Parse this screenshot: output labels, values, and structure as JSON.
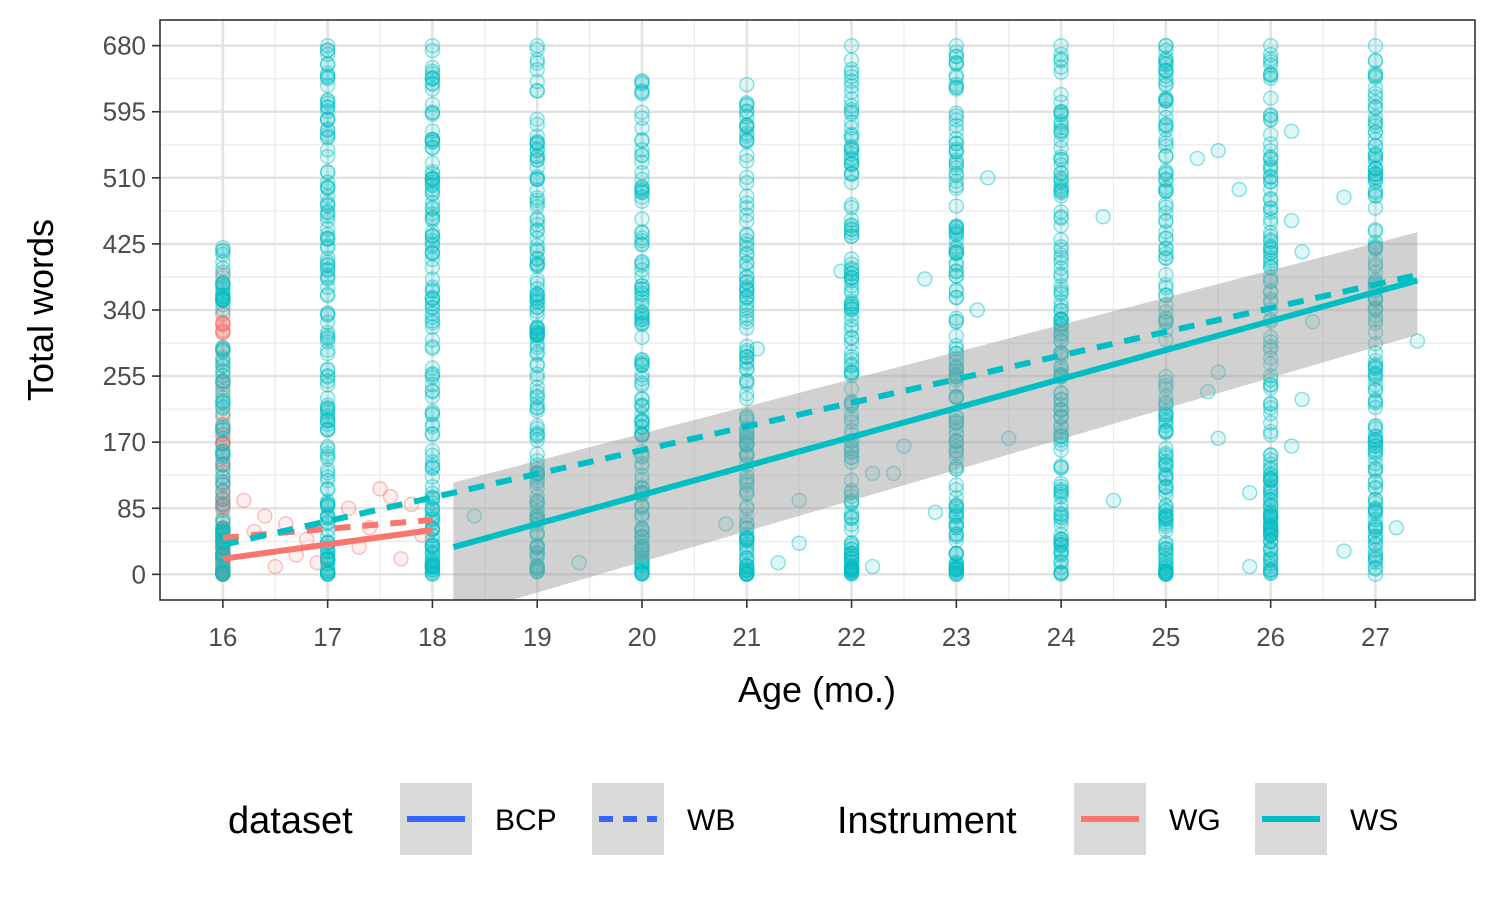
{
  "chart_data": {
    "type": "scatter",
    "xlabel": "Age (mo.)",
    "ylabel": "Total words",
    "xlim": [
      15.4,
      27.95
    ],
    "ylim": [
      -33,
      713
    ],
    "x_ticks": [
      16,
      17,
      18,
      19,
      20,
      21,
      22,
      23,
      24,
      25,
      26,
      27
    ],
    "y_ticks": [
      0,
      85,
      170,
      255,
      340,
      425,
      510,
      595,
      680
    ],
    "grid": true,
    "legend_position": "bottom",
    "legends": [
      {
        "title": "dataset",
        "entries": [
          {
            "label": "BCP",
            "linetype": "solid",
            "color": "#3366FF"
          },
          {
            "label": "WB",
            "linetype": "dashed",
            "color": "#3366FF"
          }
        ]
      },
      {
        "title": "Instrument",
        "entries": [
          {
            "label": "WG",
            "linetype": "solid",
            "color": "#F8766D"
          },
          {
            "label": "WS",
            "linetype": "solid",
            "color": "#00BFC4"
          }
        ]
      }
    ],
    "colors": {
      "WG": "#F8766D",
      "WS": "#00BFC4",
      "ribbon": "#999999"
    },
    "trend_lines": [
      {
        "instrument": "WG",
        "dataset": "BCP",
        "x": [
          16,
          18
        ],
        "y": [
          20,
          57
        ]
      },
      {
        "instrument": "WG",
        "dataset": "WB",
        "x": [
          16,
          18
        ],
        "y": [
          47,
          70
        ]
      },
      {
        "instrument": "WS",
        "dataset": "BCP",
        "x": [
          18.2,
          27.4
        ],
        "y": [
          35,
          378
        ],
        "ribbon_lower": [
          -55,
          308
        ],
        "ribbon_upper": [
          118,
          440
        ]
      },
      {
        "instrument": "WS",
        "dataset": "WB",
        "x": [
          16,
          27.4
        ],
        "y": [
          38,
          385
        ]
      }
    ],
    "point_columns": [
      {
        "instrument": "WG",
        "x": 16,
        "min": 0,
        "max": 385
      },
      {
        "instrument": "WS",
        "x": 16,
        "min": 0,
        "max": 420
      },
      {
        "instrument": "WS",
        "x": 17,
        "min": 0,
        "max": 680
      },
      {
        "instrument": "WS",
        "x": 18,
        "min": 0,
        "max": 680
      },
      {
        "instrument": "WS",
        "x": 19,
        "min": 0,
        "max": 680
      },
      {
        "instrument": "WS",
        "x": 20,
        "min": 0,
        "max": 635
      },
      {
        "instrument": "WS",
        "x": 21,
        "min": 0,
        "max": 630
      },
      {
        "instrument": "WS",
        "x": 22,
        "min": 0,
        "max": 680
      },
      {
        "instrument": "WS",
        "x": 23,
        "min": 0,
        "max": 680
      },
      {
        "instrument": "WS",
        "x": 24,
        "min": 0,
        "max": 680
      },
      {
        "instrument": "WS",
        "x": 25,
        "min": 0,
        "max": 680
      },
      {
        "instrument": "WS",
        "x": 26,
        "min": 0,
        "max": 680
      },
      {
        "instrument": "WS",
        "x": 27,
        "min": 0,
        "max": 680
      }
    ],
    "scattered_points": [
      {
        "instrument": "WG",
        "x": 16.2,
        "y": 95
      },
      {
        "instrument": "WG",
        "x": 16.3,
        "y": 55
      },
      {
        "instrument": "WG",
        "x": 16.4,
        "y": 75
      },
      {
        "instrument": "WG",
        "x": 16.5,
        "y": 10
      },
      {
        "instrument": "WG",
        "x": 16.6,
        "y": 65
      },
      {
        "instrument": "WG",
        "x": 16.7,
        "y": 25
      },
      {
        "instrument": "WG",
        "x": 16.8,
        "y": 45
      },
      {
        "instrument": "WG",
        "x": 16.9,
        "y": 15
      },
      {
        "instrument": "WG",
        "x": 17.2,
        "y": 85
      },
      {
        "instrument": "WG",
        "x": 17.3,
        "y": 35
      },
      {
        "instrument": "WG",
        "x": 17.4,
        "y": 60
      },
      {
        "instrument": "WG",
        "x": 17.5,
        "y": 110
      },
      {
        "instrument": "WG",
        "x": 17.6,
        "y": 100
      },
      {
        "instrument": "WG",
        "x": 17.7,
        "y": 20
      },
      {
        "instrument": "WG",
        "x": 17.8,
        "y": 90
      },
      {
        "instrument": "WG",
        "x": 17.9,
        "y": 50
      },
      {
        "instrument": "WS",
        "x": 18.4,
        "y": 75
      },
      {
        "instrument": "WS",
        "x": 19.4,
        "y": 15
      },
      {
        "instrument": "WS",
        "x": 20.8,
        "y": 65
      },
      {
        "instrument": "WS",
        "x": 21.1,
        "y": 290
      },
      {
        "instrument": "WS",
        "x": 21.3,
        "y": 15
      },
      {
        "instrument": "WS",
        "x": 21.5,
        "y": 95
      },
      {
        "instrument": "WS",
        "x": 21.5,
        "y": 40
      },
      {
        "instrument": "WS",
        "x": 21.9,
        "y": 390
      },
      {
        "instrument": "WS",
        "x": 22.2,
        "y": 130
      },
      {
        "instrument": "WS",
        "x": 22.2,
        "y": 10
      },
      {
        "instrument": "WS",
        "x": 22.4,
        "y": 130
      },
      {
        "instrument": "WS",
        "x": 22.5,
        "y": 165
      },
      {
        "instrument": "WS",
        "x": 22.7,
        "y": 380
      },
      {
        "instrument": "WS",
        "x": 22.8,
        "y": 80
      },
      {
        "instrument": "WS",
        "x": 23.2,
        "y": 340
      },
      {
        "instrument": "WS",
        "x": 23.3,
        "y": 510
      },
      {
        "instrument": "WS",
        "x": 23.5,
        "y": 175
      },
      {
        "instrument": "WS",
        "x": 24.4,
        "y": 460
      },
      {
        "instrument": "WS",
        "x": 24.5,
        "y": 95
      },
      {
        "instrument": "WS",
        "x": 25.3,
        "y": 535
      },
      {
        "instrument": "WS",
        "x": 25.4,
        "y": 235
      },
      {
        "instrument": "WS",
        "x": 25.5,
        "y": 545
      },
      {
        "instrument": "WS",
        "x": 25.5,
        "y": 260
      },
      {
        "instrument": "WS",
        "x": 25.5,
        "y": 175
      },
      {
        "instrument": "WS",
        "x": 25.7,
        "y": 495
      },
      {
        "instrument": "WS",
        "x": 25.8,
        "y": 105
      },
      {
        "instrument": "WS",
        "x": 25.8,
        "y": 10
      },
      {
        "instrument": "WS",
        "x": 26.2,
        "y": 570
      },
      {
        "instrument": "WS",
        "x": 26.2,
        "y": 455
      },
      {
        "instrument": "WS",
        "x": 26.2,
        "y": 165
      },
      {
        "instrument": "WS",
        "x": 26.3,
        "y": 225
      },
      {
        "instrument": "WS",
        "x": 26.3,
        "y": 415
      },
      {
        "instrument": "WS",
        "x": 26.4,
        "y": 325
      },
      {
        "instrument": "WS",
        "x": 26.7,
        "y": 485
      },
      {
        "instrument": "WS",
        "x": 26.7,
        "y": 30
      },
      {
        "instrument": "WS",
        "x": 27.2,
        "y": 60
      },
      {
        "instrument": "WS",
        "x": 27.4,
        "y": 300
      }
    ]
  }
}
